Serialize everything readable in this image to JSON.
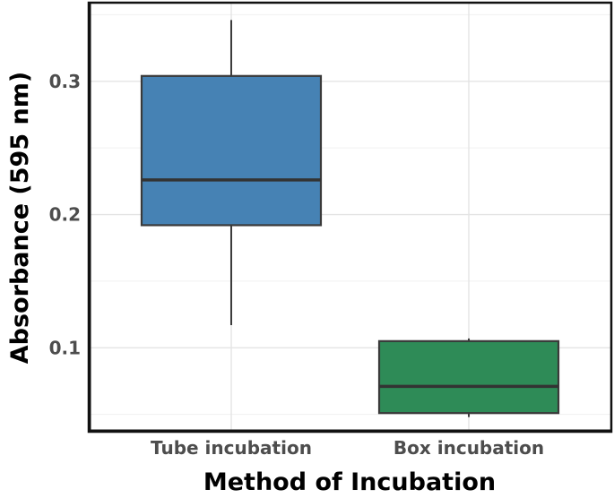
{
  "figure": {
    "background_color": "#ffffff",
    "panel_background_color": "#ffffff"
  },
  "chart_data": {
    "type": "boxplot",
    "title": "",
    "xlabel": "Method of Incubation",
    "ylabel": "Absorbance (595 nm)",
    "categories": [
      "Tube incubation",
      "Box incubation"
    ],
    "series": [
      {
        "name": "Tube incubation",
        "min": 0.117,
        "q1": 0.192,
        "median": 0.226,
        "q3": 0.304,
        "max": 0.346,
        "fill_color": "#4682B4"
      },
      {
        "name": "Box incubation",
        "min": 0.048,
        "q1": 0.051,
        "median": 0.071,
        "q3": 0.105,
        "max": 0.107,
        "fill_color": "#2E8B57"
      }
    ],
    "ylim": [
      0.037,
      0.359
    ],
    "y_major_ticks": [
      0.1,
      0.2,
      0.3
    ],
    "y_major_tick_labels": [
      "0.1",
      "0.2",
      "0.3"
    ],
    "y_minor_ticks": [
      0.05,
      0.15,
      0.25,
      0.35
    ],
    "grid": {
      "major_color": "#e4e4e4",
      "minor_color": "#f1f1f1",
      "vertical_major_on_categories": true
    },
    "legend_position": "none",
    "styles": {
      "box_border_color": "#3a3a3a",
      "median_color": "#333333",
      "whisker_color": "#3a3a3a",
      "panel_border_color": "#111111",
      "tick_label_color": "#4d4d4d",
      "axis_title_color": "#000000"
    }
  }
}
